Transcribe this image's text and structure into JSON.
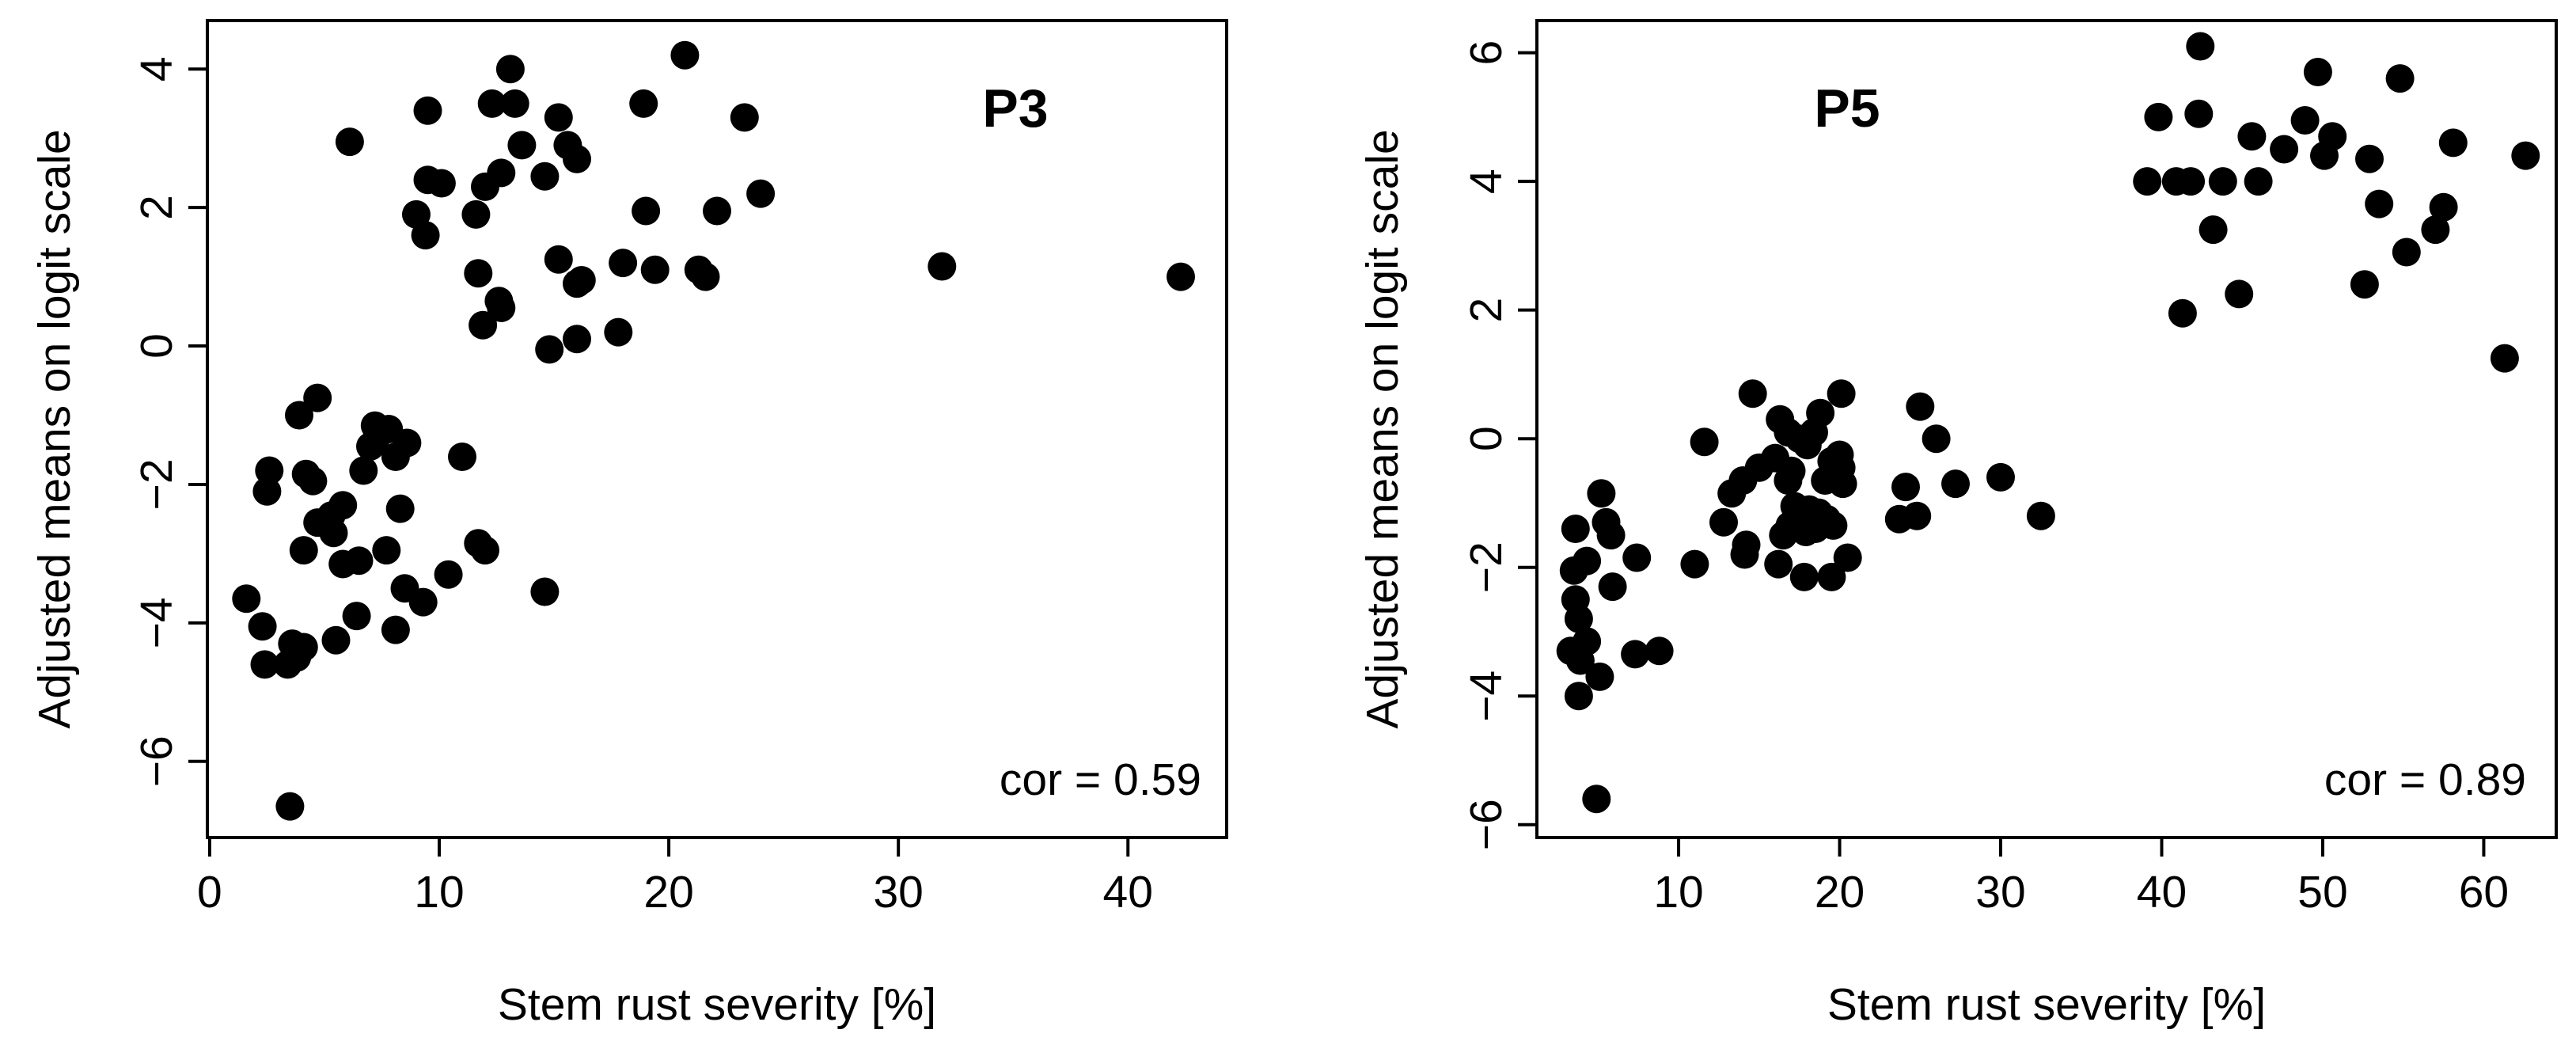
{
  "chart_data": [
    {
      "type": "scatter",
      "panel_label": "P3",
      "annotation": "cor = 0.59",
      "xlabel": "Stem rust severity [%]",
      "ylabel": "Adjusted means on logit scale",
      "xlim": [
        -0.1,
        44.3
      ],
      "ylim": [
        -7.1,
        4.7
      ],
      "xticks": [
        0,
        10,
        20,
        30,
        40
      ],
      "yticks": [
        -6,
        -4,
        -2,
        0,
        2,
        4
      ],
      "xtick_labels": [
        "0",
        "10",
        "20",
        "30",
        "40"
      ],
      "ytick_labels": [
        "−6",
        "−4",
        "−2",
        "0",
        "2",
        "4"
      ],
      "points": [
        [
          20.7,
          4.2
        ],
        [
          13.1,
          4.0
        ],
        [
          12.3,
          3.5
        ],
        [
          13.3,
          3.5
        ],
        [
          9.5,
          3.4
        ],
        [
          15.2,
          3.3
        ],
        [
          23.3,
          3.3
        ],
        [
          6.1,
          2.95
        ],
        [
          15.6,
          2.9
        ],
        [
          13.6,
          2.9
        ],
        [
          18.9,
          3.5
        ],
        [
          16.0,
          2.7
        ],
        [
          12.7,
          2.5
        ],
        [
          14.6,
          2.45
        ],
        [
          9.5,
          2.4
        ],
        [
          10.1,
          2.35
        ],
        [
          12.0,
          2.3
        ],
        [
          24.0,
          2.2
        ],
        [
          19.0,
          1.95
        ],
        [
          22.1,
          1.95
        ],
        [
          11.6,
          1.9
        ],
        [
          9.0,
          1.9
        ],
        [
          9.4,
          1.6
        ],
        [
          15.2,
          1.25
        ],
        [
          18.0,
          1.2
        ],
        [
          31.9,
          1.15
        ],
        [
          21.3,
          1.1
        ],
        [
          19.4,
          1.1
        ],
        [
          11.7,
          1.05
        ],
        [
          21.6,
          1.0
        ],
        [
          42.3,
          1.0
        ],
        [
          16.2,
          0.95
        ],
        [
          16.0,
          0.9
        ],
        [
          12.6,
          0.65
        ],
        [
          12.7,
          0.55
        ],
        [
          11.9,
          0.3
        ],
        [
          16.0,
          0.1
        ],
        [
          17.8,
          0.2
        ],
        [
          14.8,
          -0.05
        ],
        [
          4.7,
          -0.75
        ],
        [
          3.9,
          -1.0
        ],
        [
          7.2,
          -1.15
        ],
        [
          7.8,
          -1.2
        ],
        [
          7.3,
          -1.3
        ],
        [
          7.0,
          -1.45
        ],
        [
          8.6,
          -1.4
        ],
        [
          8.1,
          -1.6
        ],
        [
          11.0,
          -1.6
        ],
        [
          2.6,
          -1.8
        ],
        [
          6.7,
          -1.8
        ],
        [
          4.2,
          -1.85
        ],
        [
          4.5,
          -1.95
        ],
        [
          2.5,
          -2.1
        ],
        [
          5.8,
          -2.3
        ],
        [
          8.3,
          -2.35
        ],
        [
          5.3,
          -2.45
        ],
        [
          4.7,
          -2.55
        ],
        [
          5.4,
          -2.7
        ],
        [
          11.7,
          -2.85
        ],
        [
          4.1,
          -2.95
        ],
        [
          7.7,
          -2.95
        ],
        [
          12.0,
          -2.95
        ],
        [
          6.5,
          -3.1
        ],
        [
          5.8,
          -3.15
        ],
        [
          10.4,
          -3.3
        ],
        [
          8.5,
          -3.5
        ],
        [
          14.6,
          -3.55
        ],
        [
          1.6,
          -3.65
        ],
        [
          9.3,
          -3.7
        ],
        [
          6.4,
          -3.9
        ],
        [
          2.3,
          -4.05
        ],
        [
          8.1,
          -4.1
        ],
        [
          5.5,
          -4.25
        ],
        [
          3.6,
          -4.3
        ],
        [
          4.1,
          -4.35
        ],
        [
          3.8,
          -4.5
        ],
        [
          2.4,
          -4.6
        ],
        [
          3.4,
          -4.6
        ],
        [
          3.5,
          -6.65
        ]
      ]
    },
    {
      "type": "scatter",
      "panel_label": "P5",
      "annotation": "cor = 0.89",
      "xlabel": "Stem rust severity [%]",
      "ylabel": "Adjusted means on logit scale",
      "xlim": [
        1.2,
        64.5
      ],
      "ylim": [
        -6.2,
        6.5
      ],
      "xticks": [
        10,
        20,
        30,
        40,
        50,
        60
      ],
      "yticks": [
        -6,
        -4,
        -2,
        0,
        2,
        4,
        6
      ],
      "xtick_labels": [
        "10",
        "20",
        "30",
        "40",
        "50",
        "60"
      ],
      "ytick_labels": [
        "−6",
        "−4",
        "−2",
        "0",
        "2",
        "4",
        "6"
      ],
      "points": [
        [
          42.4,
          6.1
        ],
        [
          49.7,
          5.7
        ],
        [
          54.8,
          5.6
        ],
        [
          42.3,
          5.05
        ],
        [
          39.8,
          5.0
        ],
        [
          48.9,
          4.95
        ],
        [
          50.6,
          4.7
        ],
        [
          45.6,
          4.7
        ],
        [
          47.6,
          4.5
        ],
        [
          58.1,
          4.6
        ],
        [
          62.6,
          4.4
        ],
        [
          50.1,
          4.4
        ],
        [
          52.9,
          4.35
        ],
        [
          39.1,
          4.0
        ],
        [
          40.9,
          4.0
        ],
        [
          41.8,
          4.0
        ],
        [
          43.8,
          4.0
        ],
        [
          46.0,
          4.0
        ],
        [
          53.5,
          3.65
        ],
        [
          57.5,
          3.6
        ],
        [
          43.2,
          3.25
        ],
        [
          57.0,
          3.25
        ],
        [
          55.2,
          2.9
        ],
        [
          52.6,
          2.4
        ],
        [
          44.8,
          2.25
        ],
        [
          41.3,
          1.95
        ],
        [
          61.3,
          1.25
        ],
        [
          14.6,
          0.7
        ],
        [
          20.1,
          0.7
        ],
        [
          16.3,
          0.3
        ],
        [
          18.8,
          0.4
        ],
        [
          25.0,
          0.5
        ],
        [
          16.8,
          0.1
        ],
        [
          18.4,
          0.1
        ],
        [
          11.6,
          -0.05
        ],
        [
          17.5,
          0.0
        ],
        [
          26.0,
          0.0
        ],
        [
          18.0,
          -0.1
        ],
        [
          20.0,
          -0.25
        ],
        [
          16.0,
          -0.3
        ],
        [
          19.5,
          -0.35
        ],
        [
          15.0,
          -0.45
        ],
        [
          17.0,
          -0.5
        ],
        [
          20.1,
          -0.45
        ],
        [
          14.0,
          -0.65
        ],
        [
          16.8,
          -0.65
        ],
        [
          19.1,
          -0.65
        ],
        [
          30.0,
          -0.6
        ],
        [
          27.2,
          -0.7
        ],
        [
          13.3,
          -0.85
        ],
        [
          24.1,
          -0.75
        ],
        [
          20.2,
          -0.7
        ],
        [
          5.2,
          -0.85
        ],
        [
          17.2,
          -1.05
        ],
        [
          18.1,
          -1.1
        ],
        [
          18.7,
          -1.15
        ],
        [
          19.2,
          -1.25
        ],
        [
          24.8,
          -1.2
        ],
        [
          23.7,
          -1.25
        ],
        [
          32.5,
          -1.2
        ],
        [
          12.8,
          -1.3
        ],
        [
          19.6,
          -1.35
        ],
        [
          16.9,
          -1.35
        ],
        [
          18.5,
          -1.4
        ],
        [
          17.9,
          -1.45
        ],
        [
          5.5,
          -1.3
        ],
        [
          3.6,
          -1.4
        ],
        [
          16.5,
          -1.5
        ],
        [
          5.8,
          -1.5
        ],
        [
          14.2,
          -1.65
        ],
        [
          14.1,
          -1.8
        ],
        [
          20.5,
          -1.85
        ],
        [
          7.4,
          -1.85
        ],
        [
          4.3,
          -1.9
        ],
        [
          11.0,
          -1.95
        ],
        [
          16.2,
          -1.95
        ],
        [
          3.5,
          -2.05
        ],
        [
          17.8,
          -2.15
        ],
        [
          19.5,
          -2.15
        ],
        [
          5.9,
          -2.3
        ],
        [
          3.6,
          -2.5
        ],
        [
          3.8,
          -2.8
        ],
        [
          4.3,
          -3.15
        ],
        [
          3.3,
          -3.3
        ],
        [
          8.8,
          -3.3
        ],
        [
          7.3,
          -3.35
        ],
        [
          3.9,
          -3.45
        ],
        [
          5.1,
          -3.7
        ],
        [
          3.8,
          -4.0
        ],
        [
          4.9,
          -5.6
        ]
      ]
    }
  ]
}
